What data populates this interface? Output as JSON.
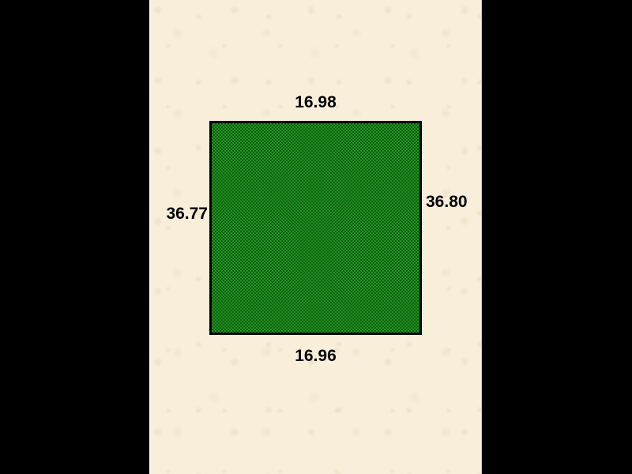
{
  "diagram": {
    "type": "lot-boundary-diagram",
    "colors": {
      "canvas_background": "#000000",
      "paper": "#f8eeda",
      "lot_fill_light": "#239423",
      "lot_fill_dark": "#0c5f0c",
      "lot_border": "#000000",
      "label_text": "#000000"
    },
    "measurements": {
      "top": "16.98",
      "bottom": "16.96",
      "left": "36.77",
      "right": "36.80"
    }
  }
}
